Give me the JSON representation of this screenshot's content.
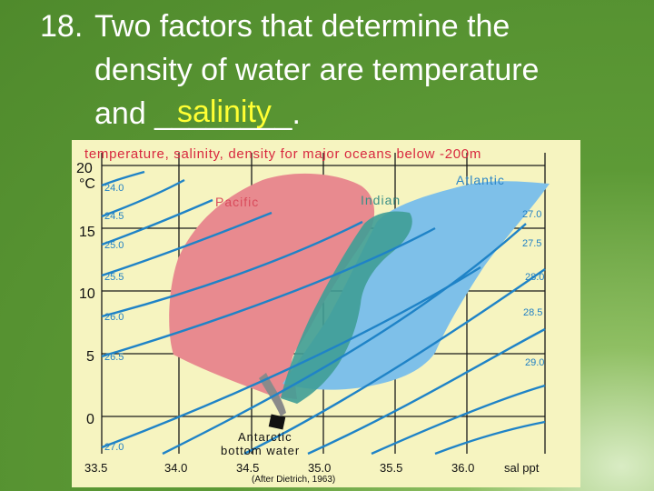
{
  "slide": {
    "number": "18.",
    "line1": "Two factors that determine the",
    "line2": "density of water are temperature",
    "line3": "and ________.",
    "answer": "salinity",
    "text_color": "#ffffff",
    "answer_color": "#ffff33"
  },
  "figure": {
    "title": "temperature, salinity, density for major oceans below -200m",
    "credit": "(After Dietrich, 1963)",
    "y_unit": "°C",
    "x_unit": "sal ppt",
    "y_ticks": [
      "20",
      "15",
      "10",
      "5",
      "0"
    ],
    "x_ticks": [
      "33.5",
      "34.0",
      "34.5",
      "35.0",
      "35.5",
      "36.0"
    ],
    "density_left": [
      "24.0",
      "24.5",
      "25.0",
      "25.5",
      "26.0",
      "26.5",
      "27.0"
    ],
    "density_right": [
      "27.0",
      "27.5",
      "28.0",
      "28.5",
      "29.0"
    ],
    "ocean_labels": {
      "pacific": "Pacific",
      "indian": "Indian",
      "atlantic": "Atlantic"
    },
    "bottom_water": [
      "Antarctic",
      "bottom water"
    ],
    "colors": {
      "background": "#f6f4c0",
      "title": "#d8283f",
      "pacific": "#e88a8f",
      "indian": "#3f9d96",
      "atlantic": "#7ec0e9",
      "density_curves": "#1f83c7",
      "density_labels": "#1f7fc4",
      "pacific_label": "#d94b5b",
      "indian_label": "#3a8f86",
      "atlantic_label": "#2d86c6"
    }
  }
}
